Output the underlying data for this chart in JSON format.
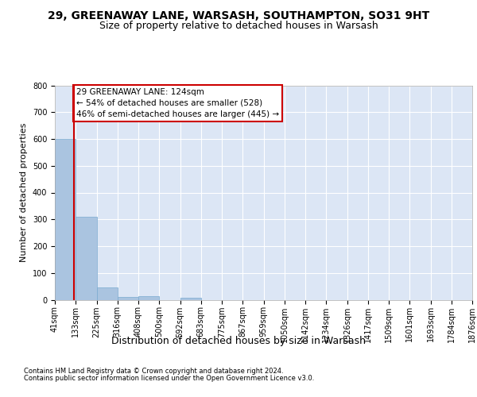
{
  "title1": "29, GREENAWAY LANE, WARSASH, SOUTHAMPTON, SO31 9HT",
  "title2": "Size of property relative to detached houses in Warsash",
  "xlabel": "Distribution of detached houses by size in Warsash",
  "ylabel": "Number of detached properties",
  "footer1": "Contains HM Land Registry data © Crown copyright and database right 2024.",
  "footer2": "Contains public sector information licensed under the Open Government Licence v3.0.",
  "bin_edges": [
    41,
    133,
    225,
    316,
    408,
    500,
    592,
    683,
    775,
    867,
    959,
    1050,
    1142,
    1234,
    1326,
    1417,
    1509,
    1601,
    1693,
    1784,
    1876
  ],
  "bin_counts": [
    600,
    310,
    46,
    11,
    13,
    0,
    8,
    0,
    0,
    0,
    0,
    0,
    0,
    0,
    0,
    0,
    0,
    0,
    0,
    0
  ],
  "bar_color": "#aac4e0",
  "bar_edge_color": "#7aaad0",
  "property_size": 124,
  "vline_color": "#cc0000",
  "annotation_text": "29 GREENAWAY LANE: 124sqm\n← 54% of detached houses are smaller (528)\n46% of semi-detached houses are larger (445) →",
  "annotation_box_color": "white",
  "annotation_box_edge_color": "#cc0000",
  "ylim": [
    0,
    800
  ],
  "yticks": [
    0,
    100,
    200,
    300,
    400,
    500,
    600,
    700,
    800
  ],
  "background_color": "#dce6f5",
  "grid_color": "white",
  "title1_fontsize": 10,
  "title2_fontsize": 9,
  "xlabel_fontsize": 9,
  "ylabel_fontsize": 8,
  "tick_fontsize": 7,
  "annotation_fontsize": 7.5,
  "footer_fontsize": 6
}
